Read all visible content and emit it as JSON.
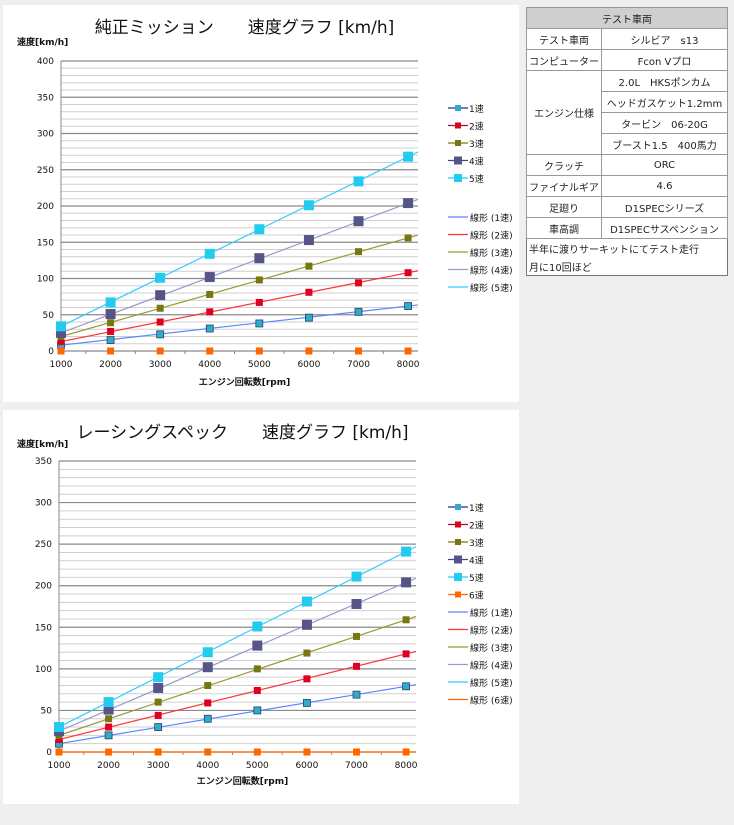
{
  "chart_data": [
    {
      "type": "line",
      "title": "純正ミッション　　速度グラフ [km/h]",
      "ylabel": "速度[km/h]",
      "xlabel": "エンジン回転数[rpm]",
      "x": [
        1000,
        2000,
        3000,
        4000,
        5000,
        6000,
        7000,
        8000
      ],
      "xlim": [
        1000,
        8200
      ],
      "ylim": [
        0,
        400
      ],
      "yticks": [
        0,
        50,
        100,
        150,
        200,
        250,
        300,
        350,
        400
      ],
      "grid": true,
      "legend_position": "right",
      "series": [
        {
          "name": "1速",
          "values": [
            8,
            15,
            23,
            31,
            38,
            46,
            54,
            62
          ],
          "marker": "#33aacc",
          "line": "#223388",
          "trend": "#5588ff",
          "trend_name": "線形 (1速)"
        },
        {
          "name": "2速",
          "values": [
            13,
            27,
            40,
            54,
            67,
            81,
            94,
            108
          ],
          "marker": "#dd0022",
          "line": "#991133",
          "trend": "#ff3333",
          "trend_name": "線形 (2速)"
        },
        {
          "name": "3速",
          "values": [
            20,
            39,
            59,
            78,
            98,
            117,
            137,
            156
          ],
          "marker": "#777711",
          "line": "#777711",
          "trend": "#999933",
          "trend_name": "線形 (3速)"
        },
        {
          "name": "4速",
          "values": [
            25,
            51,
            77,
            102,
            128,
            153,
            179,
            204
          ],
          "marker": "#555588",
          "line": "#444488",
          "trend": "#9999cc",
          "trend_name": "線形 (4速)"
        },
        {
          "name": "5速",
          "values": [
            34,
            67,
            101,
            134,
            168,
            201,
            234,
            268
          ],
          "marker": "#22ccee",
          "line": "#22ccee",
          "trend": "#33ccff",
          "trend_name": "線形 (5速)"
        },
        {
          "values": [
            0,
            0,
            0,
            0,
            0,
            0,
            0,
            0
          ],
          "marker": "#ff6600"
        }
      ]
    },
    {
      "type": "line",
      "title": "レーシングスペック　　速度グラフ [km/h]",
      "ylabel": "速度[km/h]",
      "xlabel": "エンジン回転数[rpm]",
      "x": [
        1000,
        2000,
        3000,
        4000,
        5000,
        6000,
        7000,
        8000
      ],
      "xlim": [
        1000,
        8200
      ],
      "ylim": [
        0,
        350
      ],
      "yticks": [
        0,
        50,
        100,
        150,
        200,
        250,
        300,
        350
      ],
      "grid": true,
      "legend_position": "right",
      "series": [
        {
          "name": "1速",
          "values": [
            10,
            20,
            30,
            40,
            50,
            59,
            69,
            79
          ],
          "marker": "#33aacc",
          "line": "#223388",
          "trend": "#5588ff",
          "trend_name": "線形 (1速)"
        },
        {
          "name": "2速",
          "values": [
            15,
            30,
            44,
            59,
            74,
            88,
            103,
            118
          ],
          "marker": "#dd0022",
          "line": "#991133",
          "trend": "#ff3333",
          "trend_name": "線形 (2速)"
        },
        {
          "name": "3速",
          "values": [
            20,
            40,
            60,
            80,
            100,
            119,
            139,
            159
          ],
          "marker": "#777711",
          "line": "#777711",
          "trend": "#999933",
          "trend_name": "線形 (3速)"
        },
        {
          "name": "4速",
          "values": [
            25,
            51,
            77,
            102,
            128,
            153,
            178,
            204
          ],
          "marker": "#555588",
          "line": "#444488",
          "trend": "#9999cc",
          "trend_name": "線形 (4速)"
        },
        {
          "name": "5速",
          "values": [
            30,
            60,
            90,
            120,
            151,
            181,
            211,
            241
          ],
          "marker": "#22ccee",
          "line": "#22ccee",
          "trend": "#33ccff",
          "trend_name": "線形 (5速)"
        },
        {
          "name": "6速",
          "values": [
            0,
            0,
            0,
            0,
            0,
            0,
            0,
            0
          ],
          "marker": "#ff6600",
          "line": "#ff6600",
          "trend": "#ff6600",
          "trend_name": "線形 (6速)"
        }
      ]
    }
  ],
  "spec_table": {
    "header": "テスト車両",
    "rows": [
      {
        "key": "テスト車両",
        "value": "シルビア　s13"
      },
      {
        "key": "コンピューター",
        "value": "Fcon Vプロ"
      },
      {
        "key": "エンジン仕様",
        "values": [
          "2.0L　HKSポンカム",
          "ヘッドガスケット1.2mm",
          "タービン　06-20G",
          "ブースト1.5　400馬力"
        ]
      },
      {
        "key": "クラッチ",
        "value": "ORC"
      },
      {
        "key": "ファイナルギア",
        "value": "4.6"
      },
      {
        "key": "足廻り",
        "value": "D1SPECシリーズ"
      },
      {
        "key": "車高調",
        "value": "D1SPECサスペンション"
      }
    ],
    "notes": [
      "半年に渡りサーキットにてテスト走行",
      "月に10回ほど"
    ]
  }
}
